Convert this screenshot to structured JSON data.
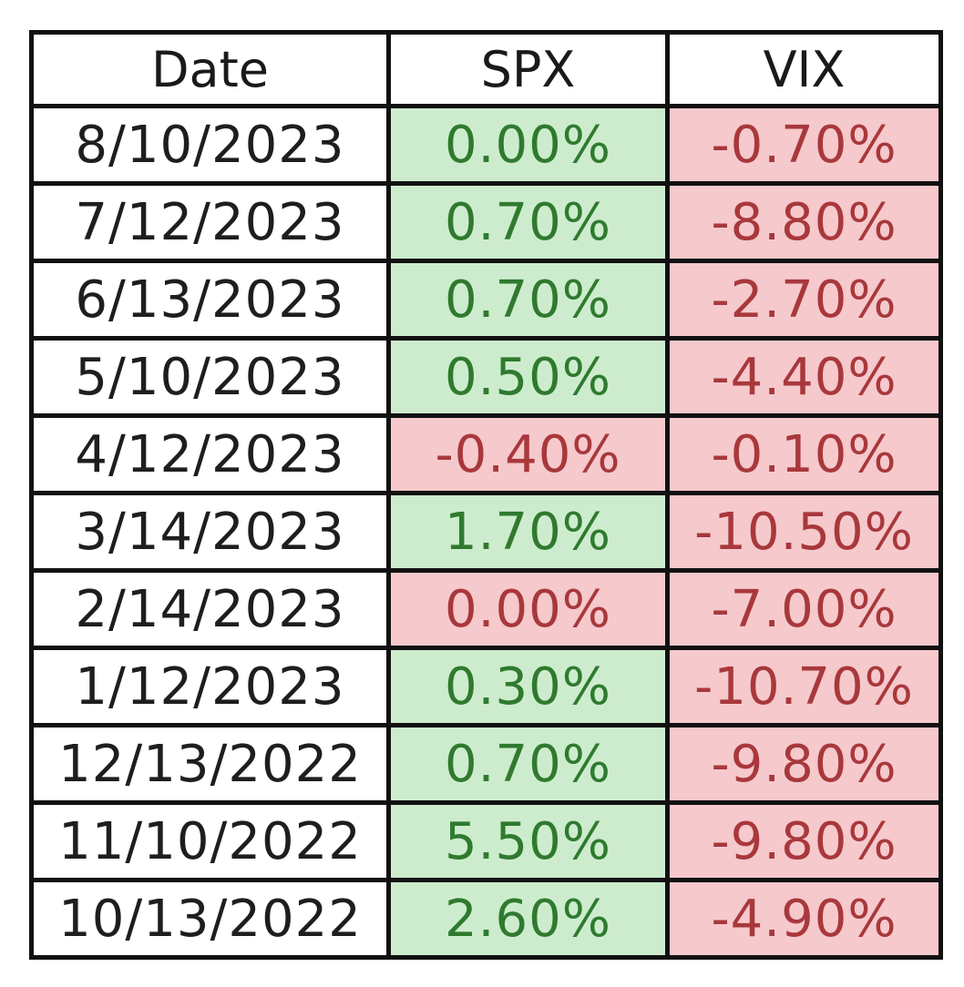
{
  "table": {
    "headers": [
      "Date",
      "SPX",
      "VIX"
    ],
    "rows": [
      {
        "date": "8/10/2023",
        "spx": "0.00%",
        "vix": "-0.70%",
        "spx_tone": "pos",
        "vix_tone": "neg"
      },
      {
        "date": "7/12/2023",
        "spx": "0.70%",
        "vix": "-8.80%",
        "spx_tone": "pos",
        "vix_tone": "neg"
      },
      {
        "date": "6/13/2023",
        "spx": "0.70%",
        "vix": "-2.70%",
        "spx_tone": "pos",
        "vix_tone": "neg"
      },
      {
        "date": "5/10/2023",
        "spx": "0.50%",
        "vix": "-4.40%",
        "spx_tone": "pos",
        "vix_tone": "neg"
      },
      {
        "date": "4/12/2023",
        "spx": "-0.40%",
        "vix": "-0.10%",
        "spx_tone": "neg",
        "vix_tone": "neg"
      },
      {
        "date": "3/14/2023",
        "spx": "1.70%",
        "vix": "-10.50%",
        "spx_tone": "pos",
        "vix_tone": "neg"
      },
      {
        "date": "2/14/2023",
        "spx": "0.00%",
        "vix": "-7.00%",
        "spx_tone": "neg",
        "vix_tone": "neg"
      },
      {
        "date": "1/12/2023",
        "spx": "0.30%",
        "vix": "-10.70%",
        "spx_tone": "pos",
        "vix_tone": "neg"
      },
      {
        "date": "12/13/2022",
        "spx": "0.70%",
        "vix": "-9.80%",
        "spx_tone": "pos",
        "vix_tone": "neg"
      },
      {
        "date": "11/10/2022",
        "spx": "5.50%",
        "vix": "-9.80%",
        "spx_tone": "pos",
        "vix_tone": "neg"
      },
      {
        "date": "10/13/2022",
        "spx": "2.60%",
        "vix": "-4.90%",
        "spx_tone": "pos",
        "vix_tone": "neg"
      }
    ]
  },
  "colors": {
    "positive_fill": "#cdeccd",
    "positive_text": "#2f7a2f",
    "negative_fill": "#f6c9cc",
    "negative_text": "#a8383c",
    "border": "#111111"
  }
}
